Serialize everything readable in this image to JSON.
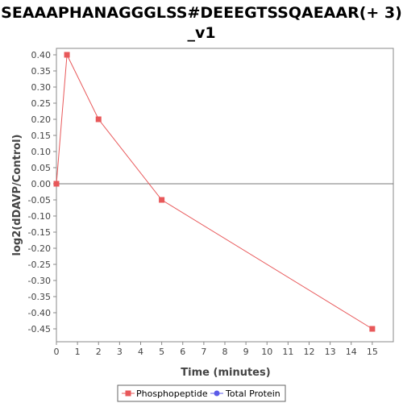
{
  "chart_data": {
    "type": "line",
    "title_lines": [
      "SEAAAPHANAGGGLSS#DEEEGTSSQAEAAR(+ 3)",
      "_v1"
    ],
    "xlabel": "Time (minutes)",
    "ylabel": "log2(dDAVP/Control)",
    "xlim": [
      0,
      16
    ],
    "ylim": [
      -0.49,
      0.42
    ],
    "x_ticks": [
      0,
      1,
      2,
      3,
      4,
      5,
      6,
      7,
      8,
      9,
      10,
      11,
      12,
      13,
      14,
      15
    ],
    "y_ticks": [
      0.4,
      0.35,
      0.3,
      0.25,
      0.2,
      0.15,
      0.1,
      0.05,
      0.0,
      -0.05,
      -0.1,
      -0.15,
      -0.2,
      -0.25,
      -0.3,
      -0.35,
      -0.4,
      -0.45
    ],
    "series": [
      {
        "name": "Phosphopeptide",
        "color": "#e8585a",
        "marker": "square",
        "x": [
          0,
          0.5,
          2,
          5,
          15
        ],
        "y": [
          0.0,
          0.4,
          0.2,
          -0.05,
          -0.45
        ]
      },
      {
        "name": "Total Protein",
        "color": "#5b5be8",
        "marker": "circle",
        "x": [],
        "y": []
      }
    ],
    "zero_line": true,
    "grid": false,
    "legend_position": "bottom"
  }
}
